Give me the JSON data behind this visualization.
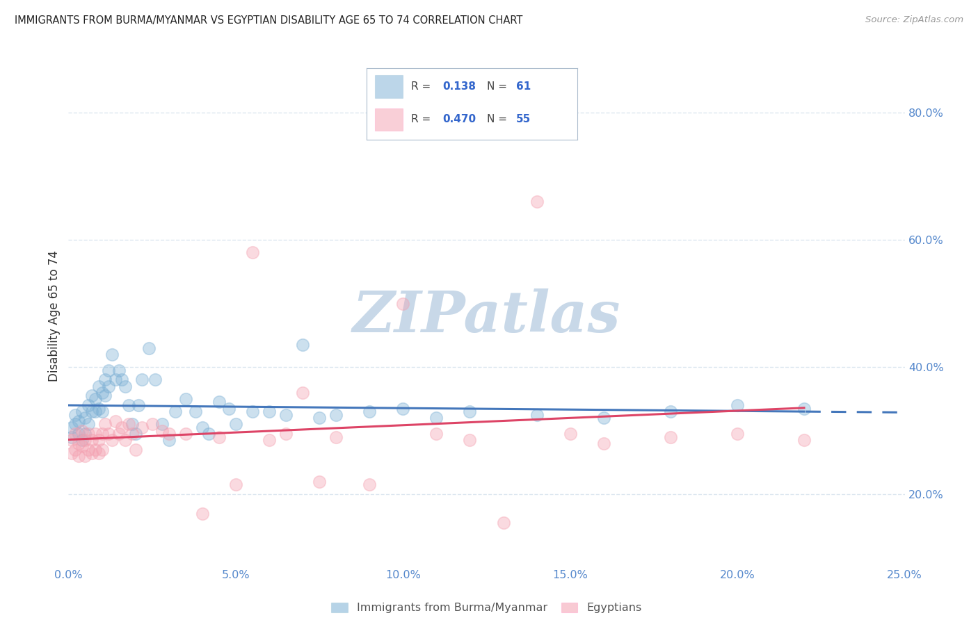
{
  "title": "IMMIGRANTS FROM BURMA/MYANMAR VS EGYPTIAN DISABILITY AGE 65 TO 74 CORRELATION CHART",
  "source": "Source: ZipAtlas.com",
  "ylabel": "Disability Age 65 to 74",
  "xmin": 0.0,
  "xmax": 0.25,
  "ymin": 0.09,
  "ymax": 0.87,
  "yticks": [
    0.2,
    0.4,
    0.6,
    0.8
  ],
  "ytick_labels": [
    "20.0%",
    "40.0%",
    "60.0%",
    "80.0%"
  ],
  "xticks": [
    0.0,
    0.05,
    0.1,
    0.15,
    0.2,
    0.25
  ],
  "xtick_labels": [
    "0.0%",
    "5.0%",
    "10.0%",
    "15.0%",
    "20.0%",
    "25.0%"
  ],
  "legend_r_burma": "0.138",
  "legend_n_burma": "61",
  "legend_r_egypt": "0.470",
  "legend_n_egypt": "55",
  "color_burma": "#7BAFD4",
  "color_egypt": "#F4A0B0",
  "watermark": "ZIPatlas",
  "watermark_color": "#C8D8E8",
  "title_color": "#222222",
  "tick_color": "#5588CC",
  "grid_color": "#D8E4EE",
  "line_burma": "#4477BB",
  "line_egypt": "#DD4466",
  "burma_x": [
    0.001,
    0.001,
    0.002,
    0.002,
    0.003,
    0.003,
    0.004,
    0.004,
    0.005,
    0.005,
    0.006,
    0.006,
    0.007,
    0.007,
    0.008,
    0.008,
    0.009,
    0.009,
    0.01,
    0.01,
    0.011,
    0.011,
    0.012,
    0.012,
    0.013,
    0.014,
    0.015,
    0.016,
    0.017,
    0.018,
    0.019,
    0.02,
    0.021,
    0.022,
    0.024,
    0.026,
    0.028,
    0.03,
    0.032,
    0.035,
    0.038,
    0.04,
    0.042,
    0.045,
    0.048,
    0.05,
    0.055,
    0.06,
    0.065,
    0.07,
    0.075,
    0.08,
    0.09,
    0.1,
    0.11,
    0.12,
    0.14,
    0.16,
    0.18,
    0.2,
    0.22
  ],
  "burma_y": [
    0.305,
    0.29,
    0.31,
    0.325,
    0.295,
    0.315,
    0.285,
    0.33,
    0.295,
    0.32,
    0.34,
    0.31,
    0.355,
    0.33,
    0.35,
    0.33,
    0.37,
    0.335,
    0.36,
    0.33,
    0.38,
    0.355,
    0.37,
    0.395,
    0.42,
    0.38,
    0.395,
    0.38,
    0.37,
    0.34,
    0.31,
    0.295,
    0.34,
    0.38,
    0.43,
    0.38,
    0.31,
    0.285,
    0.33,
    0.35,
    0.33,
    0.305,
    0.295,
    0.345,
    0.335,
    0.31,
    0.33,
    0.33,
    0.325,
    0.435,
    0.32,
    0.325,
    0.33,
    0.335,
    0.32,
    0.33,
    0.325,
    0.32,
    0.33,
    0.34,
    0.335
  ],
  "egypt_x": [
    0.001,
    0.001,
    0.002,
    0.002,
    0.003,
    0.003,
    0.004,
    0.004,
    0.005,
    0.005,
    0.006,
    0.006,
    0.007,
    0.007,
    0.008,
    0.008,
    0.009,
    0.009,
    0.01,
    0.01,
    0.011,
    0.012,
    0.013,
    0.014,
    0.015,
    0.016,
    0.017,
    0.018,
    0.019,
    0.02,
    0.022,
    0.025,
    0.028,
    0.03,
    0.035,
    0.04,
    0.045,
    0.05,
    0.055,
    0.06,
    0.065,
    0.07,
    0.075,
    0.08,
    0.09,
    0.1,
    0.11,
    0.12,
    0.13,
    0.14,
    0.15,
    0.16,
    0.18,
    0.2,
    0.22
  ],
  "egypt_y": [
    0.285,
    0.265,
    0.295,
    0.27,
    0.28,
    0.26,
    0.3,
    0.275,
    0.285,
    0.26,
    0.295,
    0.27,
    0.285,
    0.265,
    0.295,
    0.27,
    0.285,
    0.265,
    0.295,
    0.27,
    0.31,
    0.295,
    0.285,
    0.315,
    0.295,
    0.305,
    0.285,
    0.31,
    0.295,
    0.27,
    0.305,
    0.31,
    0.3,
    0.295,
    0.295,
    0.17,
    0.29,
    0.215,
    0.58,
    0.285,
    0.295,
    0.36,
    0.22,
    0.29,
    0.215,
    0.5,
    0.295,
    0.285,
    0.155,
    0.66,
    0.295,
    0.28,
    0.29,
    0.295,
    0.285
  ]
}
